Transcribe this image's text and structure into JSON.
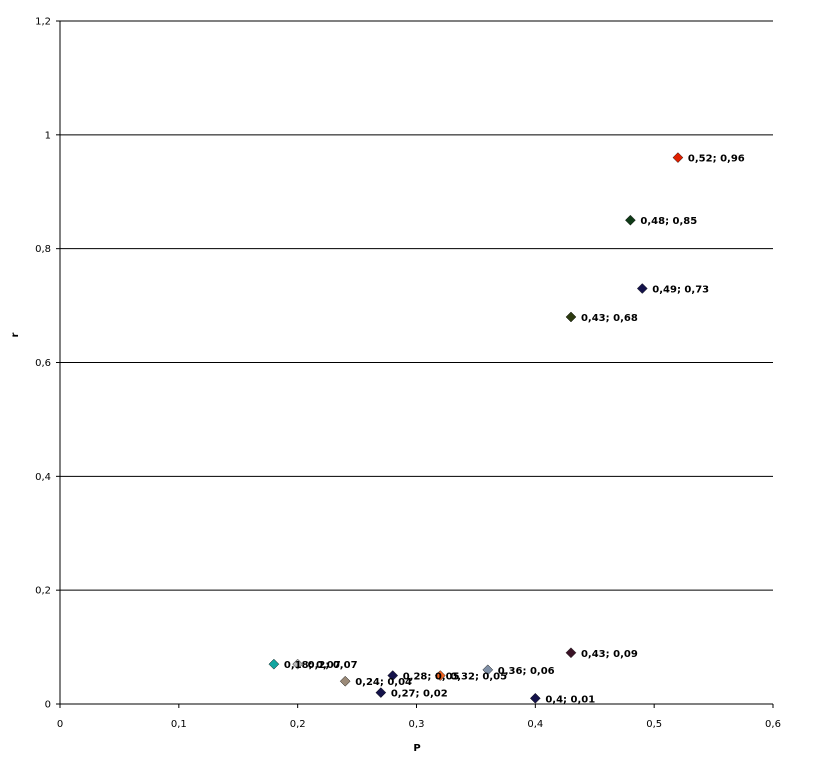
{
  "chart_data": {
    "type": "scatter",
    "xlabel": "P",
    "ylabel": "r",
    "xlim": [
      0,
      0.6
    ],
    "ylim": [
      0,
      1.2
    ],
    "x_ticks": [
      "0",
      "0,1",
      "0,2",
      "0,3",
      "0,4",
      "0,5",
      "0,6"
    ],
    "y_ticks": [
      "0",
      "0,2",
      "0,4",
      "0,6",
      "0,8",
      "1",
      "1,2"
    ],
    "grid": "horizontal",
    "legend": "none",
    "points": [
      {
        "x": 0.52,
        "y": 0.96,
        "label": "0,52; 0,96",
        "color": "#e02000"
      },
      {
        "x": 0.48,
        "y": 0.85,
        "label": "0,48; 0,85",
        "color": "#0f3a17"
      },
      {
        "x": 0.49,
        "y": 0.73,
        "label": "0,49; 0,73",
        "color": "#14124a"
      },
      {
        "x": 0.43,
        "y": 0.68,
        "label": "0,43; 0,68",
        "color": "#2c3a10"
      },
      {
        "x": 0.43,
        "y": 0.09,
        "label": "0,43; 0,09",
        "color": "#3a1226"
      },
      {
        "x": 0.36,
        "y": 0.06,
        "label": "0,36; 0,06",
        "color": "#7f8fa6"
      },
      {
        "x": 0.32,
        "y": 0.05,
        "label": "0,32; 0,05",
        "color": "#f26522"
      },
      {
        "x": 0.28,
        "y": 0.05,
        "label": "0,28; 0,05",
        "color": "#14124a"
      },
      {
        "x": 0.27,
        "y": 0.02,
        "label": "0,27; 0,02",
        "color": "#14124a"
      },
      {
        "x": 0.24,
        "y": 0.04,
        "label": "0,24; 0,04",
        "color": "#9b8a78"
      },
      {
        "x": 0.2,
        "y": 0.07,
        "label": "0,2; 0,07",
        "color": "#b9b9b9"
      },
      {
        "x": 0.18,
        "y": 0.07,
        "label": "0,18; 0,07",
        "color": "#13a5a0"
      },
      {
        "x": 0.4,
        "y": 0.01,
        "label": "0,4; 0,01",
        "color": "#14124a"
      }
    ]
  }
}
